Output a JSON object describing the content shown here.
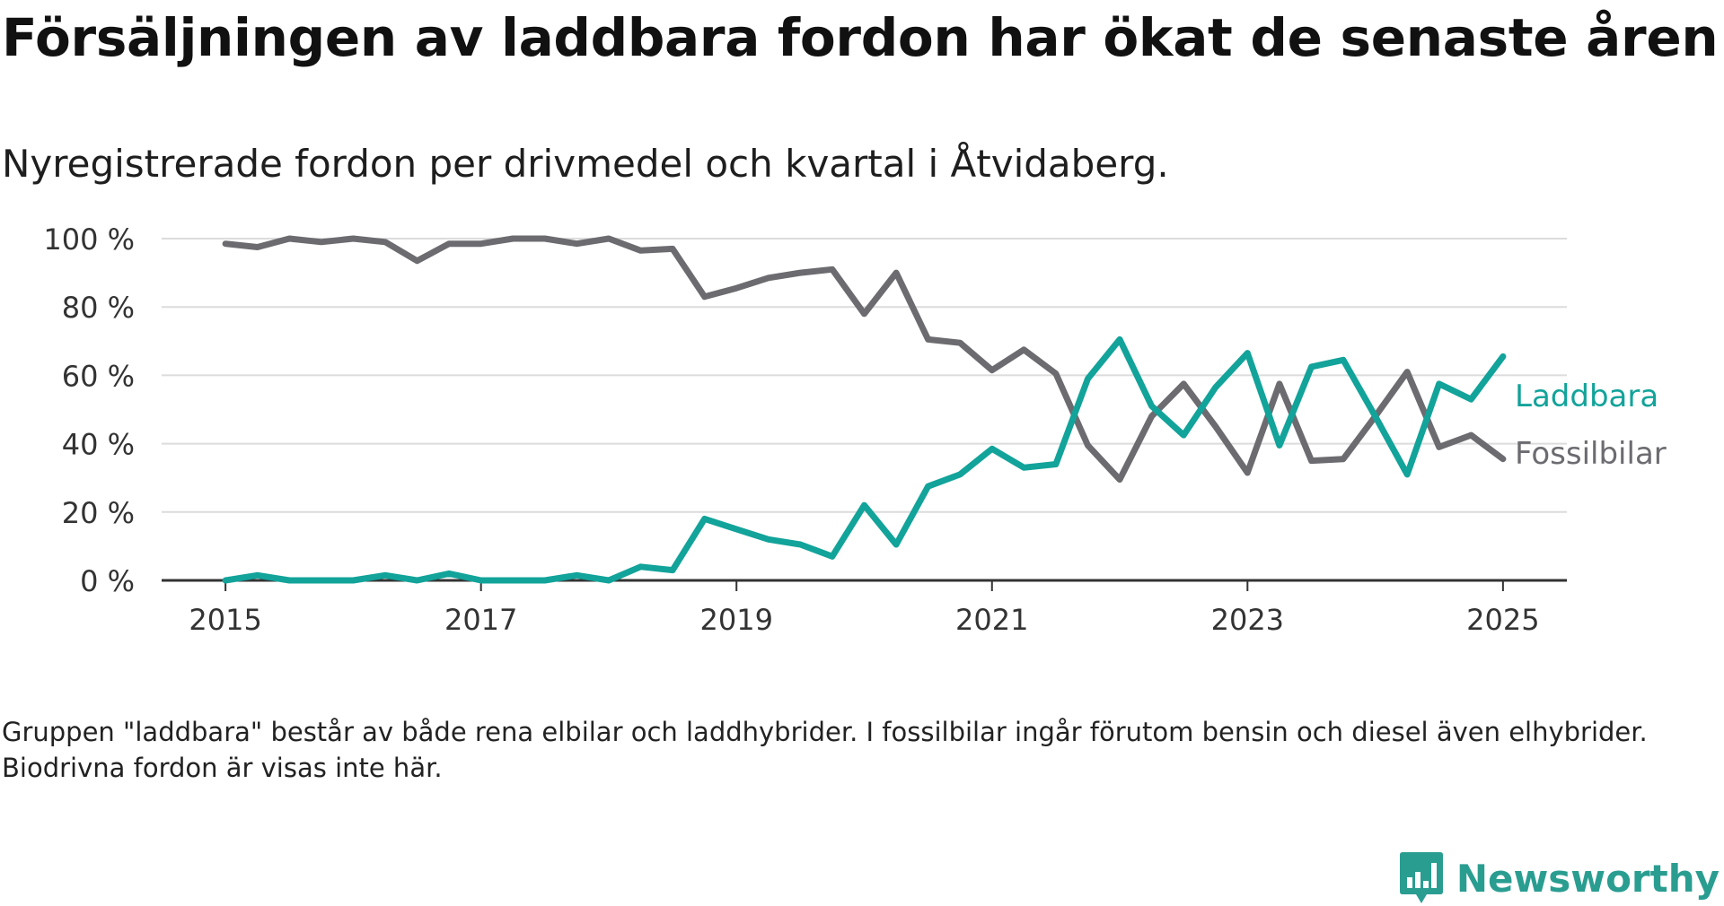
{
  "title": "Försäljningen av laddbara fordon har ökat de senaste åren",
  "subtitle": "Nyregistrerade fordon per drivmedel och kvartal i Åtvidaberg.",
  "note": "Gruppen \"laddbara\" består av både rena elbilar och laddhybrider. I fossilbilar ingår förutom bensin och diesel även elhybrider. Biodrivna fordon är visas inte här.",
  "brand": {
    "name": "Newsworthy",
    "icon": "bar-chart-speech-bubble-icon",
    "color": "#2a9d91"
  },
  "chart_data": {
    "type": "line",
    "x": [
      2015.0,
      2015.25,
      2015.5,
      2015.75,
      2016.0,
      2016.25,
      2016.5,
      2016.75,
      2017.0,
      2017.25,
      2017.5,
      2017.75,
      2018.0,
      2018.25,
      2018.5,
      2018.75,
      2019.0,
      2019.25,
      2019.5,
      2019.75,
      2020.0,
      2020.25,
      2020.5,
      2020.75,
      2021.0,
      2021.25,
      2021.5,
      2021.75,
      2022.0,
      2022.25,
      2022.5,
      2022.75,
      2023.0,
      2023.25,
      2023.5,
      2023.75,
      2024.0,
      2024.25,
      2024.5,
      2024.75,
      2025.0
    ],
    "series": [
      {
        "name": "Laddbara",
        "color": "#12a39a",
        "values": [
          0,
          1.5,
          0,
          0,
          0,
          1.5,
          0,
          2,
          0,
          0,
          0,
          1.5,
          0,
          4,
          3,
          18,
          15,
          12,
          10.5,
          7,
          22,
          10.5,
          27.5,
          31,
          38.5,
          33,
          34,
          59,
          70.5,
          51,
          42.5,
          56.5,
          66.5,
          39.5,
          62.5,
          64.5,
          48,
          31,
          57.5,
          53,
          65.5
        ]
      },
      {
        "name": "Fossilbilar",
        "color": "#6c6b70",
        "values": [
          98.5,
          97.5,
          100,
          99,
          100,
          99,
          93.5,
          98.5,
          98.5,
          100,
          100,
          98.5,
          100,
          96.5,
          97,
          83,
          85.5,
          88.5,
          90,
          91,
          78,
          90,
          70.5,
          69.5,
          61.5,
          67.5,
          60.5,
          39.5,
          29.5,
          48,
          57.5,
          45,
          31.5,
          57.5,
          35,
          35.5,
          48,
          61,
          39,
          42.5,
          35.5
        ]
      }
    ],
    "x_ticks": [
      2015,
      2017,
      2019,
      2021,
      2023,
      2025
    ],
    "y_ticks": [
      0,
      20,
      40,
      60,
      80,
      100
    ],
    "y_tick_suffix": " %",
    "xlim": [
      2014.5,
      2025.5
    ],
    "ylim": [
      0,
      100
    ],
    "grid": "horizontal",
    "legend": "inline labels at line ends, right"
  }
}
